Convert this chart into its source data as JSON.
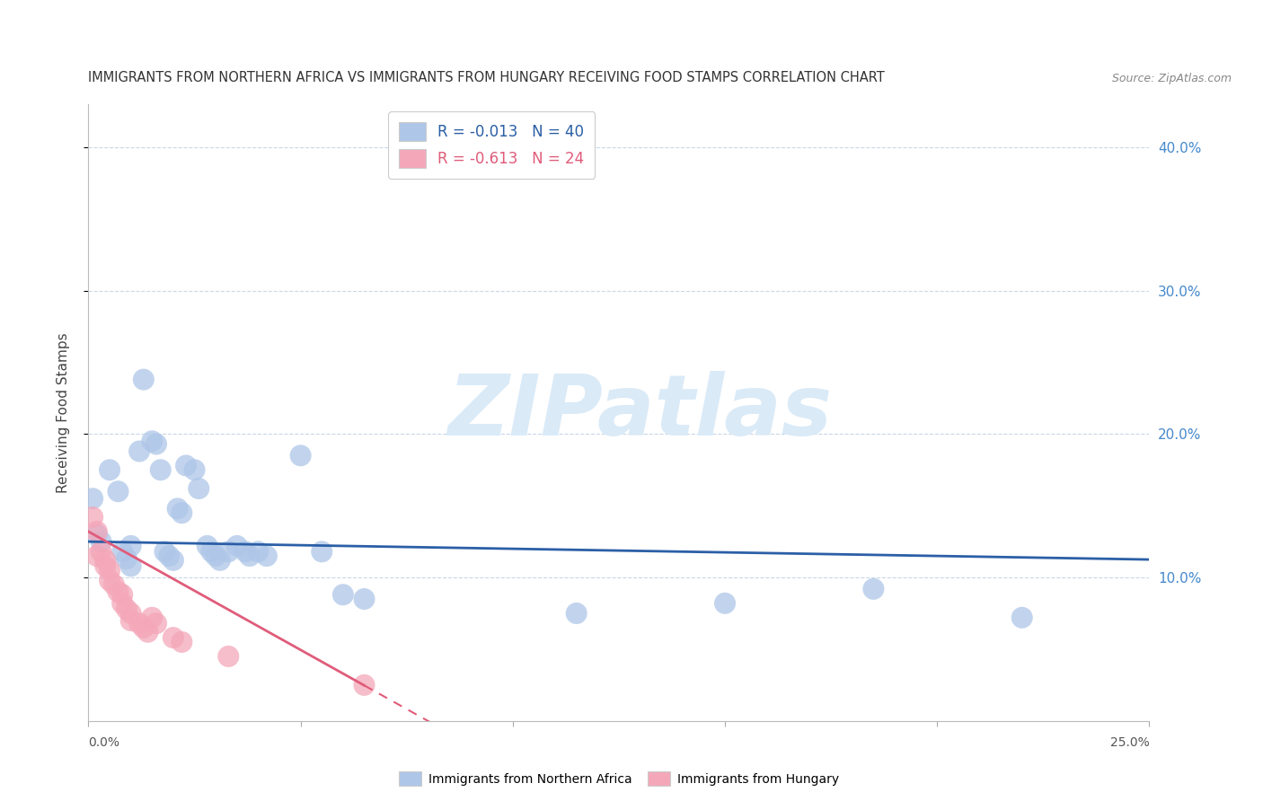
{
  "title": "IMMIGRANTS FROM NORTHERN AFRICA VS IMMIGRANTS FROM HUNGARY RECEIVING FOOD STAMPS CORRELATION CHART",
  "source": "Source: ZipAtlas.com",
  "ylabel": "Receiving Food Stamps",
  "right_yticks": [
    0.1,
    0.2,
    0.3,
    0.4
  ],
  "right_yticklabels": [
    "10.0%",
    "20.0%",
    "30.0%",
    "40.0%"
  ],
  "xlim": [
    0.0,
    0.25
  ],
  "ylim": [
    0.0,
    0.43
  ],
  "legend_blue_r": "R = -0.013",
  "legend_blue_n": "N = 40",
  "legend_pink_r": "R = -0.613",
  "legend_pink_n": "N = 24",
  "blue_color": "#aec6e8",
  "pink_color": "#f4a7b9",
  "blue_line_color": "#2b5fa6",
  "pink_line_color": "#e05c7a",
  "blue_scatter": [
    [
      0.001,
      0.155
    ],
    [
      0.002,
      0.13
    ],
    [
      0.003,
      0.125
    ],
    [
      0.005,
      0.175
    ],
    [
      0.007,
      0.16
    ],
    [
      0.008,
      0.118
    ],
    [
      0.009,
      0.113
    ],
    [
      0.01,
      0.108
    ],
    [
      0.01,
      0.122
    ],
    [
      0.012,
      0.188
    ],
    [
      0.013,
      0.238
    ],
    [
      0.015,
      0.195
    ],
    [
      0.016,
      0.193
    ],
    [
      0.017,
      0.175
    ],
    [
      0.018,
      0.118
    ],
    [
      0.019,
      0.115
    ],
    [
      0.02,
      0.112
    ],
    [
      0.021,
      0.148
    ],
    [
      0.022,
      0.145
    ],
    [
      0.023,
      0.178
    ],
    [
      0.025,
      0.175
    ],
    [
      0.026,
      0.162
    ],
    [
      0.028,
      0.122
    ],
    [
      0.029,
      0.118
    ],
    [
      0.03,
      0.115
    ],
    [
      0.031,
      0.112
    ],
    [
      0.033,
      0.118
    ],
    [
      0.035,
      0.122
    ],
    [
      0.037,
      0.118
    ],
    [
      0.038,
      0.115
    ],
    [
      0.04,
      0.118
    ],
    [
      0.042,
      0.115
    ],
    [
      0.05,
      0.185
    ],
    [
      0.055,
      0.118
    ],
    [
      0.06,
      0.088
    ],
    [
      0.065,
      0.085
    ],
    [
      0.115,
      0.075
    ],
    [
      0.15,
      0.082
    ],
    [
      0.185,
      0.092
    ],
    [
      0.22,
      0.072
    ]
  ],
  "pink_scatter": [
    [
      0.001,
      0.142
    ],
    [
      0.002,
      0.132
    ],
    [
      0.002,
      0.115
    ],
    [
      0.003,
      0.118
    ],
    [
      0.004,
      0.112
    ],
    [
      0.004,
      0.108
    ],
    [
      0.005,
      0.105
    ],
    [
      0.005,
      0.098
    ],
    [
      0.006,
      0.095
    ],
    [
      0.007,
      0.09
    ],
    [
      0.008,
      0.088
    ],
    [
      0.008,
      0.082
    ],
    [
      0.009,
      0.078
    ],
    [
      0.01,
      0.075
    ],
    [
      0.01,
      0.07
    ],
    [
      0.012,
      0.068
    ],
    [
      0.013,
      0.065
    ],
    [
      0.014,
      0.062
    ],
    [
      0.015,
      0.072
    ],
    [
      0.016,
      0.068
    ],
    [
      0.02,
      0.058
    ],
    [
      0.022,
      0.055
    ],
    [
      0.033,
      0.045
    ],
    [
      0.065,
      0.025
    ]
  ],
  "blue_line_intercept": 0.125,
  "blue_line_slope": -0.05,
  "pink_line_intercept": 0.132,
  "pink_line_slope": -1.65,
  "pink_line_solid_end": 0.065,
  "pink_line_dash_end": 0.09,
  "watermark": "ZIPatlas",
  "watermark_color": "#daeaf7",
  "background_color": "#ffffff",
  "grid_color": "#c8d8e8",
  "title_color": "#333333",
  "right_axis_color": "#4488cc",
  "legend_text_blue": "#2b5fa6",
  "legend_text_pink": "#e05c7a"
}
